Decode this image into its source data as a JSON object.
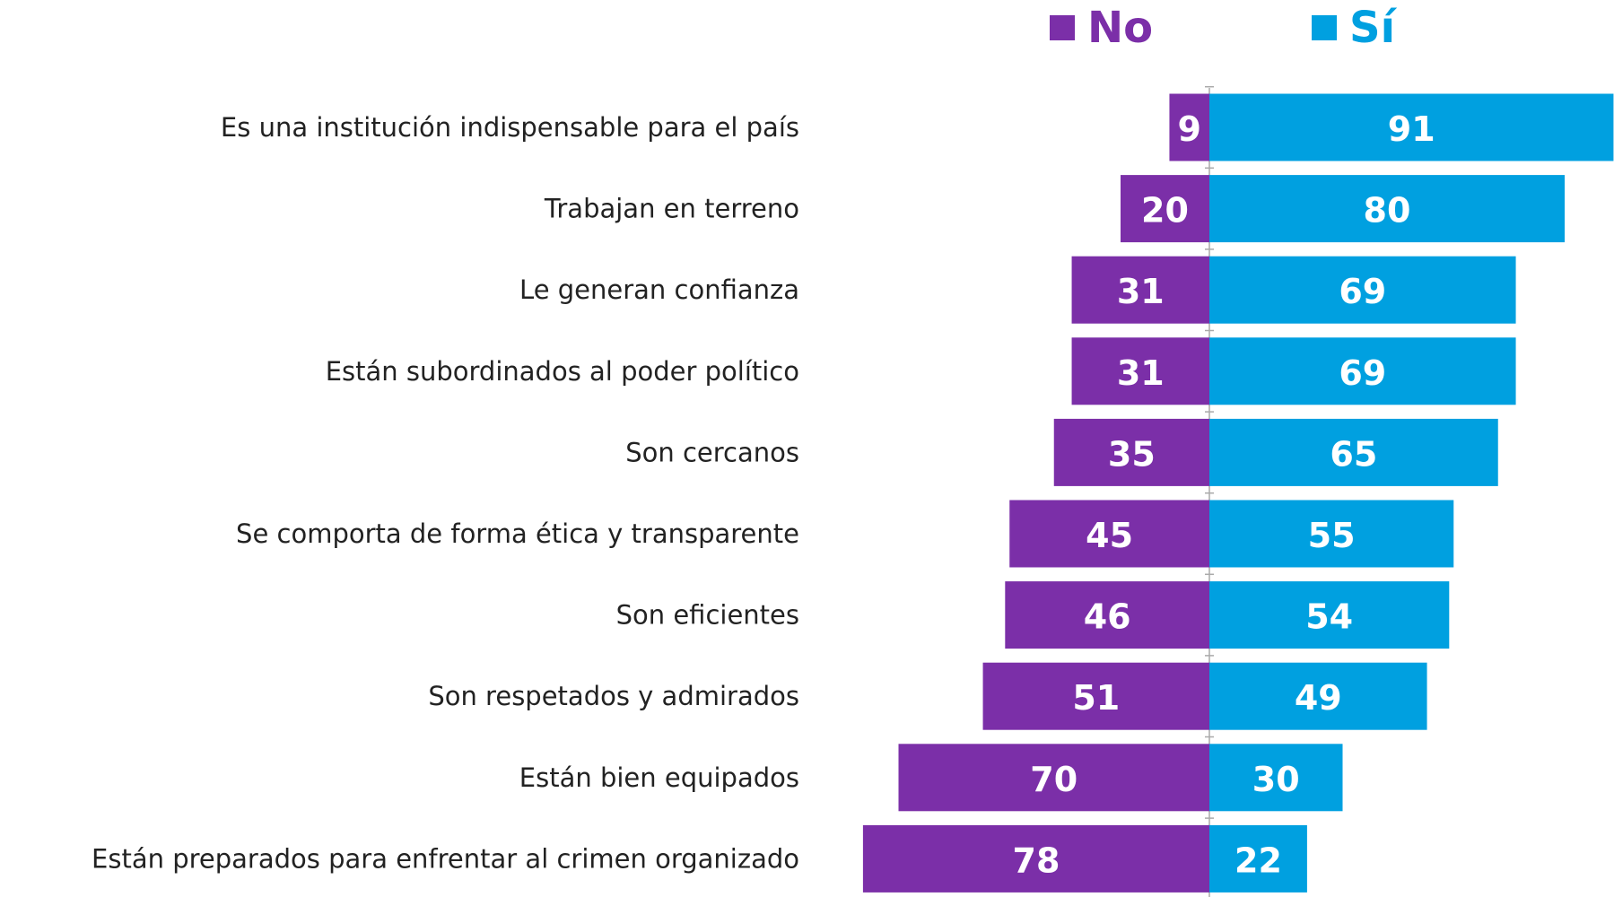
{
  "chart_data": {
    "type": "diverging-bar",
    "categories": [
      "Es una institución indispensable para el país",
      "Trabajan en terreno",
      "Le generan confianza",
      "Están subordinados al poder político",
      "Son cercanos",
      "Se comporta de forma ética y transparente",
      "Son eficientes",
      "Son respetados y admirados",
      "Están bien equipados",
      "Están preparados para enfrentar al crimen organizado"
    ],
    "series": [
      {
        "name": "No",
        "color": "#7b2fa8",
        "values": [
          9,
          20,
          31,
          31,
          35,
          45,
          46,
          51,
          70,
          78
        ]
      },
      {
        "name": "Sí",
        "color": "#00a0e0",
        "values": [
          91,
          80,
          69,
          69,
          65,
          55,
          54,
          49,
          30,
          22
        ]
      }
    ]
  }
}
